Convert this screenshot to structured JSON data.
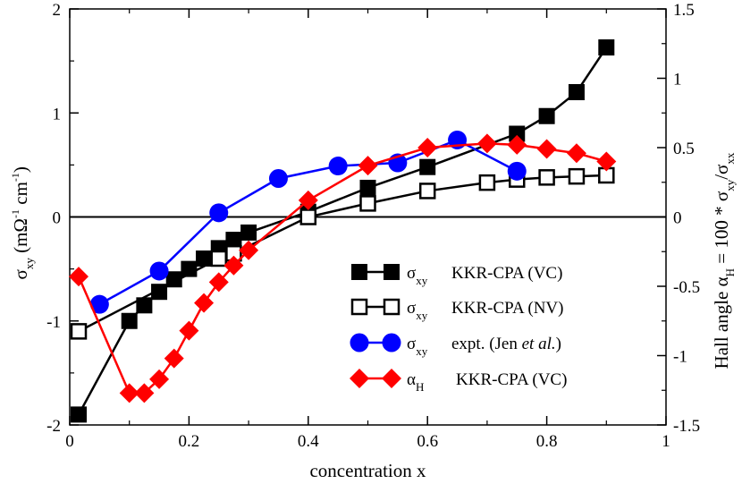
{
  "chart_data": {
    "type": "line",
    "xlabel": "concentration x",
    "ylabel_left": {
      "symbol": "σ",
      "symbol_sub": "xy",
      "unit_open": "(mΩ",
      "unit_exp1": "-1",
      "unit_mid": " cm",
      "unit_exp2": "-1",
      "unit_close": ")"
    },
    "ylabel_right": {
      "prefix": "Hall angle α",
      "prefix_sub": "H",
      "middle": " = 100 * σ",
      "middle_sub": "xy",
      "slash": "/σ",
      "slash_sub": "xx"
    },
    "xlim": [
      0,
      1
    ],
    "ylim_left": [
      -2,
      2
    ],
    "ylim_right": [
      -1.5,
      1.5
    ],
    "x_ticks": [
      "0",
      "0.2",
      "0.4",
      "0.6",
      "0.8",
      "1"
    ],
    "y_left_ticks": [
      "-2",
      "-1",
      "0",
      "1",
      "2"
    ],
    "y_right_ticks": [
      "-1.5",
      "-1",
      "-0.5",
      "0",
      "0.5",
      "1",
      "1.5"
    ],
    "x_tick_values": [
      0,
      0.2,
      0.4,
      0.6,
      0.8,
      1
    ],
    "y_left_tick_values": [
      -2,
      -1,
      0,
      1,
      2
    ],
    "y_right_tick_values": [
      -1.5,
      -1,
      -0.5,
      0,
      0.5,
      1,
      1.5
    ],
    "zero_line": true,
    "legend_position": "lower-right",
    "series": [
      {
        "name": "sigma_xy KKR-CPA (VC)",
        "axis": "left",
        "color": "#000000",
        "marker": "square-filled",
        "legend": {
          "symbol": "σ",
          "sub": "xy",
          "text": "KKR-CPA (VC)"
        },
        "x": [
          0.015,
          0.1,
          0.125,
          0.15,
          0.175,
          0.2,
          0.225,
          0.25,
          0.275,
          0.3,
          0.4,
          0.5,
          0.6,
          0.75,
          0.8,
          0.85,
          0.9
        ],
        "y": [
          -1.9,
          -1.0,
          -0.85,
          -0.72,
          -0.6,
          -0.5,
          -0.4,
          -0.3,
          -0.22,
          -0.15,
          0.05,
          0.28,
          0.48,
          0.8,
          0.97,
          1.2,
          1.63
        ]
      },
      {
        "name": "sigma_xy KKR-CPA (NV)",
        "axis": "left",
        "color": "#000000",
        "marker": "square-open",
        "legend": {
          "symbol": "σ",
          "sub": "xy",
          "text": "KKR-CPA (NV)"
        },
        "x": [
          0.015,
          0.25,
          0.275,
          0.4,
          0.5,
          0.6,
          0.7,
          0.75,
          0.8,
          0.85,
          0.9
        ],
        "y": [
          -1.1,
          -0.4,
          -0.35,
          0.0,
          0.13,
          0.25,
          0.33,
          0.36,
          0.38,
          0.39,
          0.4
        ]
      },
      {
        "name": "sigma_xy expt. (Jen et al.)",
        "axis": "left",
        "color": "#0000ff",
        "marker": "circle-filled",
        "legend": {
          "symbol": "σ",
          "sub": "xy",
          "text": "expt. (Jen ",
          "italic": "et al.",
          "text_end": ")"
        },
        "x": [
          0.05,
          0.15,
          0.25,
          0.35,
          0.45,
          0.55,
          0.65,
          0.75
        ],
        "y": [
          -0.84,
          -0.52,
          0.04,
          0.37,
          0.49,
          0.52,
          0.74,
          0.44
        ]
      },
      {
        "name": "alpha_H KKR-CPA (VC)",
        "axis": "right",
        "color": "#ff0000",
        "marker": "diamond-filled",
        "legend": {
          "symbol": "α",
          "sub": "H",
          "text": "KKR-CPA (VC)"
        },
        "x": [
          0.015,
          0.1,
          0.125,
          0.15,
          0.175,
          0.2,
          0.225,
          0.25,
          0.275,
          0.3,
          0.4,
          0.5,
          0.6,
          0.7,
          0.75,
          0.8,
          0.85,
          0.9
        ],
        "y": [
          -0.43,
          -1.27,
          -1.27,
          -1.17,
          -1.02,
          -0.82,
          -0.62,
          -0.47,
          -0.35,
          -0.24,
          0.12,
          0.37,
          0.5,
          0.53,
          0.52,
          0.49,
          0.46,
          0.4
        ]
      }
    ]
  }
}
